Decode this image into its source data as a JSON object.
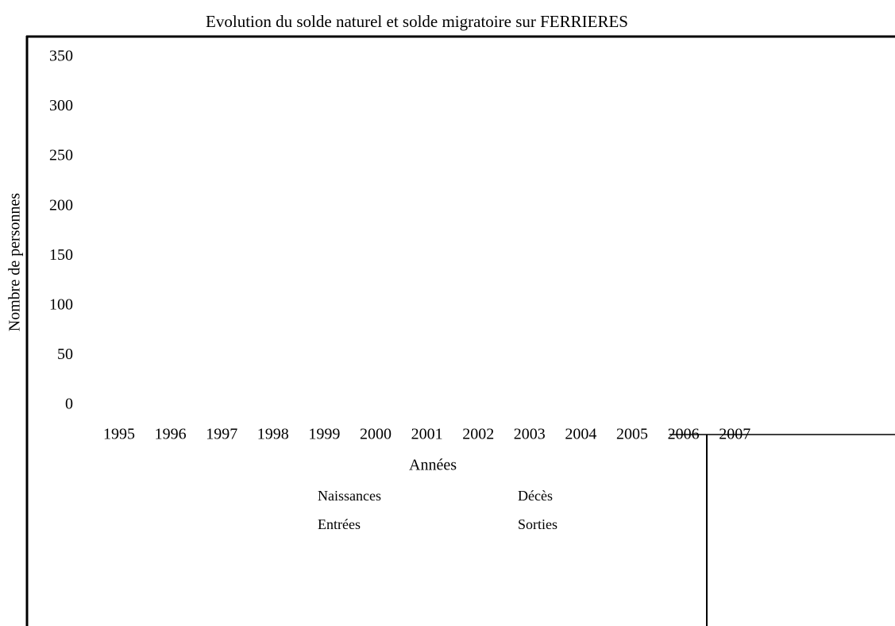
{
  "chart_data": {
    "type": "line",
    "title": "Evolution du solde naturel et solde migratoire sur FERRIERES",
    "x_label": "Années",
    "y_label": "Nombre de personnes",
    "categories": [
      "1995",
      "1996",
      "1997",
      "1998",
      "1999",
      "2000",
      "2001",
      "2002",
      "2003",
      "2004",
      "2005",
      "2006",
      "2007"
    ],
    "series": [
      {
        "name": "Naissances",
        "values": [
          null,
          null,
          null,
          null,
          null,
          null,
          null,
          null,
          null,
          null,
          null,
          null,
          null
        ]
      },
      {
        "name": "Décès",
        "values": [
          null,
          null,
          null,
          null,
          null,
          null,
          null,
          null,
          null,
          null,
          null,
          null,
          null
        ]
      },
      {
        "name": "Entrées",
        "values": [
          null,
          null,
          null,
          null,
          null,
          null,
          null,
          null,
          null,
          null,
          null,
          null,
          null
        ]
      },
      {
        "name": "Sorties",
        "values": [
          null,
          null,
          null,
          null,
          null,
          null,
          null,
          null,
          null,
          null,
          null,
          null,
          null
        ]
      }
    ],
    "ylim": [
      0,
      350
    ],
    "yticks": [
      0,
      50,
      100,
      150,
      200,
      250,
      300,
      350
    ]
  }
}
